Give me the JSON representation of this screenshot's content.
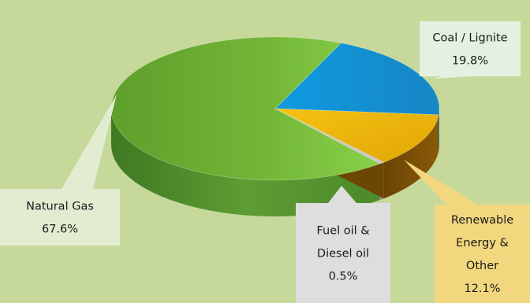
{
  "chart_data": {
    "type": "pie",
    "style": "3d",
    "background_color": "#c6d99b",
    "slices": [
      {
        "label_lines": [
          "Natural Gas",
          "67.6%"
        ],
        "value": 67.6,
        "color": "#7cc23c",
        "side_color": "#4e8a2a",
        "callout_color": "#e2ecd1"
      },
      {
        "label_lines": [
          "Coal / Lignite",
          "19.8%"
        ],
        "value": 19.8,
        "color": "#1aa6e6",
        "side_color": "#0a6fa8",
        "callout_color": "#e4f1e0"
      },
      {
        "label_lines": [
          "Renewable",
          "Energy &",
          "Other",
          "12.1%"
        ],
        "value": 12.1,
        "color": "#f2b807",
        "side_color": "#7a4e05",
        "callout_color": "#f3d77e"
      },
      {
        "label_lines": [
          "Fuel oil &",
          "Diesel oil",
          "0.5%"
        ],
        "value": 0.5,
        "color": "#c9c9c9",
        "side_color": "#8f8f8f",
        "callout_color": "#dedede"
      }
    ]
  }
}
